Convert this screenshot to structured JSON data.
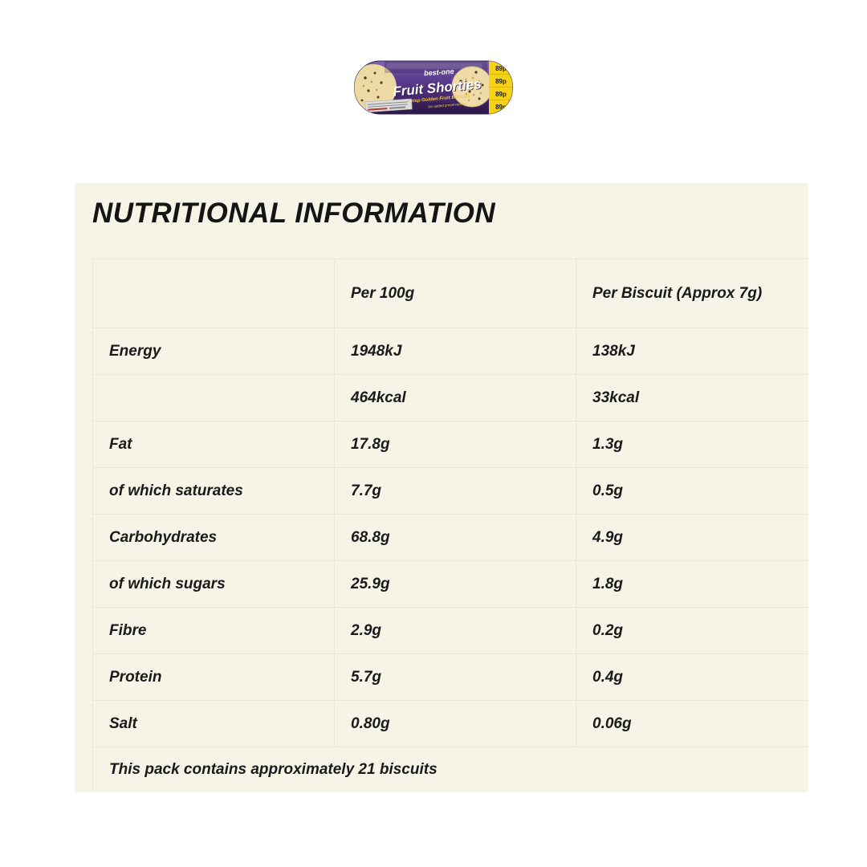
{
  "product": {
    "brand": "best-one",
    "title": "Fruit Shorties",
    "subtitle": "Crisp Golden Fruit Biscuits",
    "tagline": "No added preservatives",
    "price_flash": "89p",
    "colors": {
      "wrapper_purple": "#5a3b8c",
      "price_flash_yellow": "#f6d216",
      "biscuit_cream": "#eedba8"
    }
  },
  "section": {
    "title": "NUTRITIONAL INFORMATION",
    "panel_background": "#f5f4e6",
    "table": {
      "columns": [
        "",
        "Per 100g",
        "Per Biscuit (Approx 7g)"
      ],
      "rows": [
        {
          "label": "Energy",
          "per100": "1948kJ",
          "perBiscuit": "138kJ"
        },
        {
          "label": "",
          "per100": "464kcal",
          "perBiscuit": "33kcal"
        },
        {
          "label": "Fat",
          "per100": "17.8g",
          "perBiscuit": "1.3g"
        },
        {
          "label": "of which saturates",
          "per100": "7.7g",
          "perBiscuit": "0.5g"
        },
        {
          "label": "Carbohydrates",
          "per100": "68.8g",
          "perBiscuit": "4.9g"
        },
        {
          "label": "of which sugars",
          "per100": "25.9g",
          "perBiscuit": "1.8g"
        },
        {
          "label": "Fibre",
          "per100": "2.9g",
          "perBiscuit": "0.2g"
        },
        {
          "label": "Protein",
          "per100": "5.7g",
          "perBiscuit": "0.4g"
        },
        {
          "label": "Salt",
          "per100": "0.80g",
          "perBiscuit": "0.06g"
        }
      ],
      "footnote": "This pack contains approximately 21 biscuits"
    }
  }
}
